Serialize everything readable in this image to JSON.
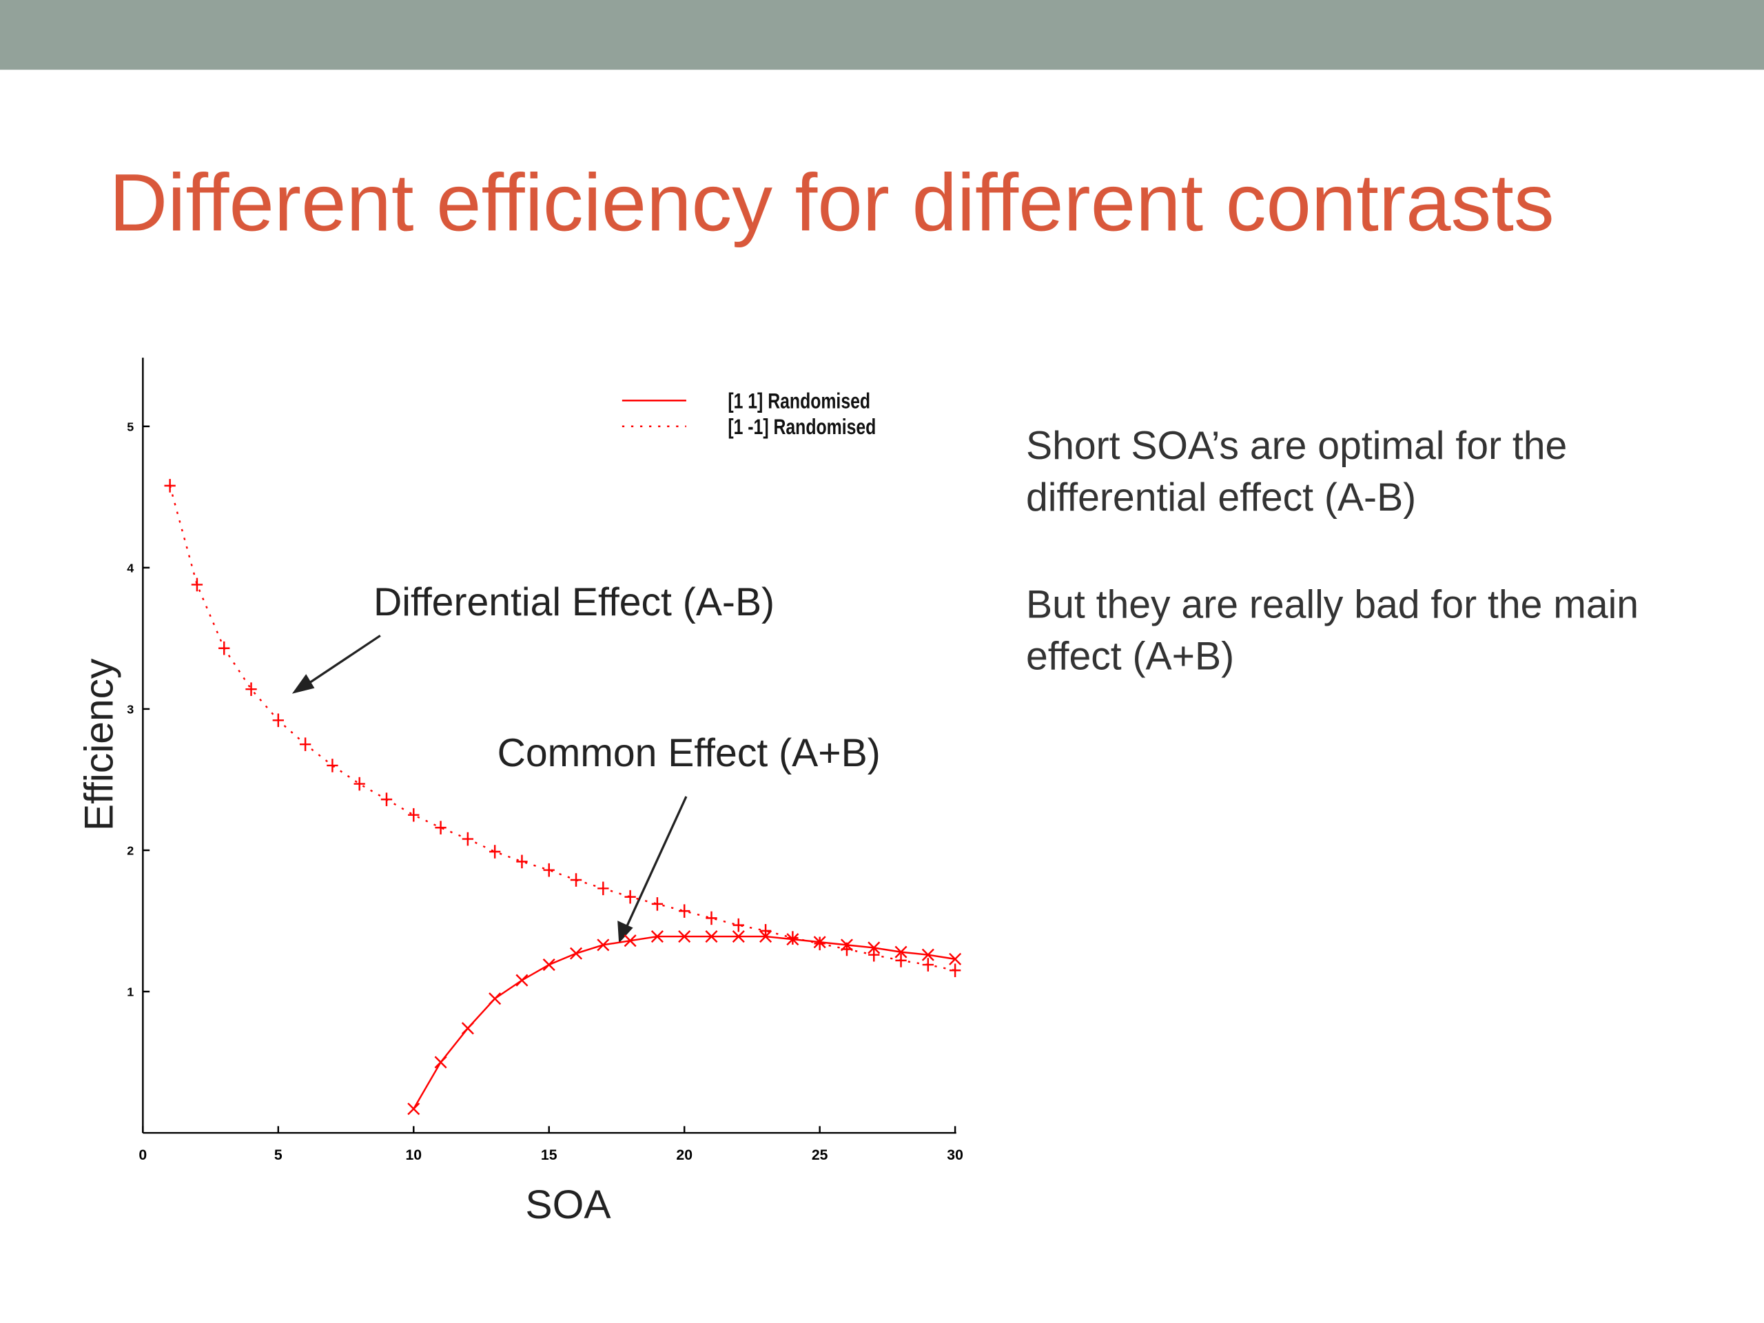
{
  "title": "Different efficiency for different contrasts",
  "body": [
    "Short SOA’s are optimal for the",
    "differential effect (A-B)",
    "But they are really bad for the main",
    "effect (A+B)"
  ],
  "chart_data": {
    "type": "line",
    "x_label": "SOA",
    "y_label": "Efficiency",
    "xlim": [
      0,
      30
    ],
    "ylim": [
      0,
      5.5
    ],
    "xticks": [
      0,
      5,
      10,
      15,
      20,
      25,
      30
    ],
    "yticks": [
      1,
      2,
      3,
      4,
      5
    ],
    "legend": "upper right",
    "annotations": [
      "Differential Effect (A-B)",
      "Common Effect (A+B)"
    ],
    "series": [
      {
        "name": "[1 1] Randomised",
        "color": "#ff0000",
        "style": "solid",
        "marker": "x",
        "x": [
          10,
          11,
          12,
          13,
          14,
          15,
          16,
          17,
          18,
          19,
          20,
          21,
          22,
          23,
          24,
          25,
          26,
          27,
          28,
          29,
          30
        ],
        "values": [
          0.17,
          0.5,
          0.74,
          0.95,
          1.08,
          1.19,
          1.27,
          1.33,
          1.36,
          1.39,
          1.39,
          1.39,
          1.39,
          1.39,
          1.37,
          1.35,
          1.33,
          1.31,
          1.28,
          1.26,
          1.23
        ]
      },
      {
        "name": "[1 -1] Randomised",
        "color": "#ff0000",
        "style": "dotted",
        "marker": "+",
        "x": [
          1,
          2,
          3,
          4,
          5,
          6,
          7,
          8,
          9,
          10,
          11,
          12,
          13,
          14,
          15,
          16,
          17,
          18,
          19,
          20,
          21,
          22,
          23,
          24,
          25,
          26,
          27,
          28,
          29,
          30
        ],
        "values": [
          4.58,
          3.88,
          3.43,
          3.14,
          2.92,
          2.75,
          2.6,
          2.47,
          2.36,
          2.25,
          2.16,
          2.08,
          1.99,
          1.92,
          1.86,
          1.79,
          1.73,
          1.67,
          1.62,
          1.57,
          1.52,
          1.47,
          1.43,
          1.38,
          1.34,
          1.3,
          1.26,
          1.22,
          1.19,
          1.15
        ]
      }
    ]
  }
}
